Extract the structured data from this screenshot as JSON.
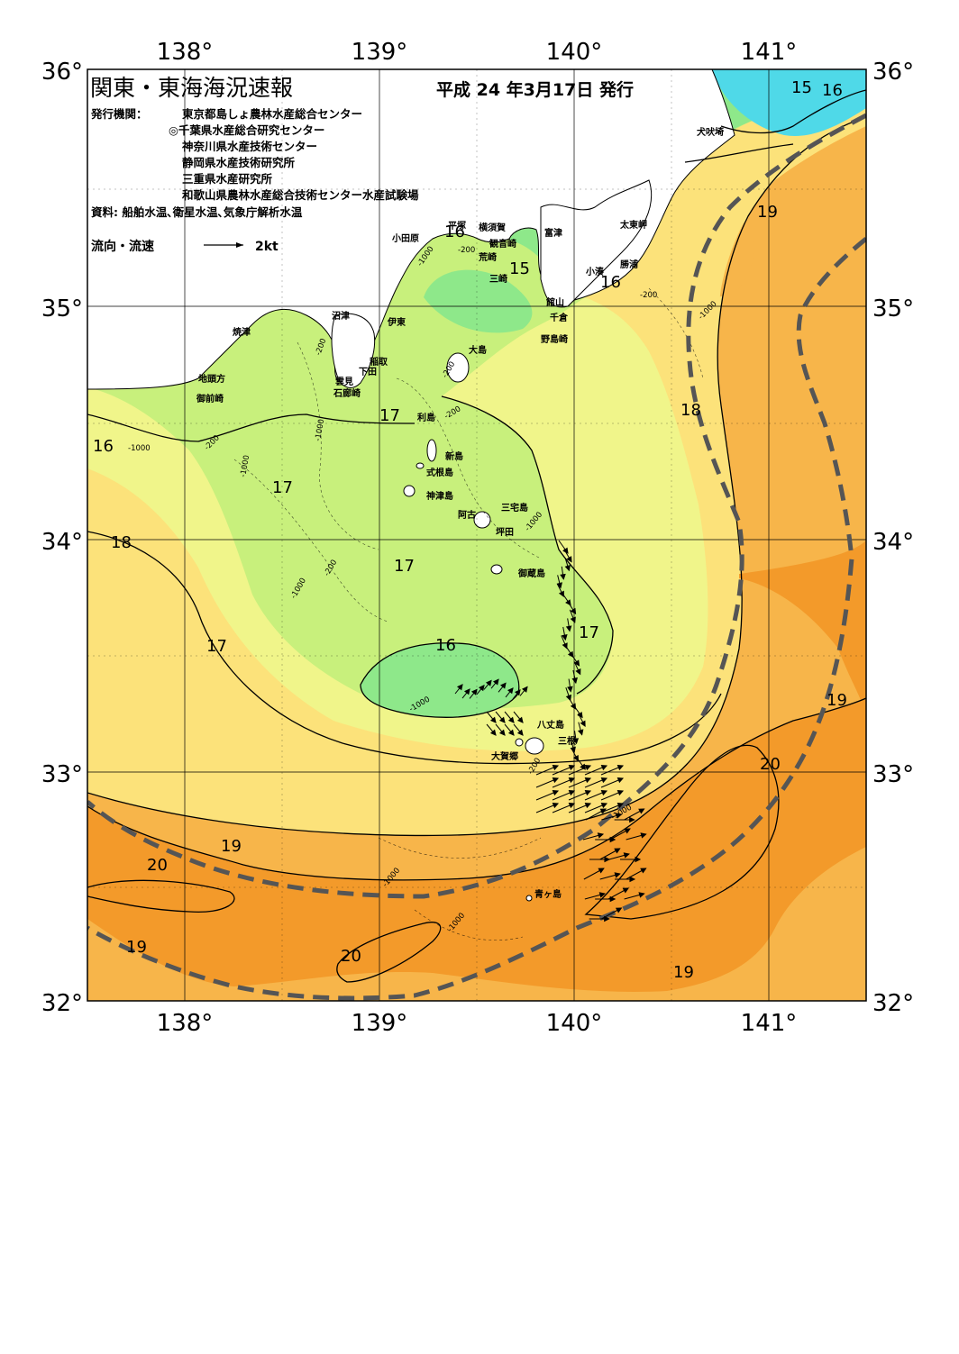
{
  "header": {
    "title": "関東・東海海況速報",
    "issue": "平成 24 年3月17日 発行",
    "issuer_label": "発行機関：",
    "issuers": [
      "東京都島しょ農林水産総合センター",
      "◎千葉県水産総合研究センター",
      "神奈川県水産技術センター",
      "静岡県水産技術研究所",
      "三重県水産研究所",
      "和歌山県農林水産総合技術センター水産試験場"
    ],
    "sources": "資料: 船舶水温､衛星水温､気象庁解析水温"
  },
  "legend": {
    "label": "流向・流速",
    "scale": "2kt"
  },
  "axes": {
    "lon_labels": [
      "138°",
      "139°",
      "140°",
      "141°"
    ],
    "lat_labels": [
      "36°",
      "35°",
      "34°",
      "33°",
      "32°"
    ]
  },
  "place_names": [
    "犬吠埼",
    "太東岬",
    "勝浦",
    "小湊",
    "富津",
    "横須賀",
    "観音崎",
    "荒崎",
    "三崎",
    "館山",
    "千倉",
    "野島崎",
    "平塚",
    "小田原",
    "沼津",
    "伊東",
    "焼津",
    "稲取",
    "下田",
    "雲見",
    "石廊崎",
    "地頭方",
    "御前崎",
    "大島",
    "利島",
    "新島",
    "式根島",
    "神津島",
    "三宅島",
    "阿古",
    "坪田",
    "御蔵島",
    "八丈島",
    "三根",
    "大賀郷",
    "青ヶ島"
  ],
  "isotherm_labels": [
    "15",
    "16",
    "16",
    "16",
    "16",
    "17",
    "17",
    "17",
    "17",
    "17",
    "17",
    "18",
    "18",
    "19",
    "19",
    "19",
    "19",
    "19",
    "20",
    "20",
    "20"
  ],
  "depth_labels": [
    "-200",
    "-1000"
  ],
  "colors": {
    "t15": "#4fd9e8",
    "t16": "#8ee88a",
    "t17a": "#c8f07c",
    "t17b": "#f0f58a",
    "t18": "#fce27a",
    "t18b": "#f9cb5c",
    "t19": "#f7b54a",
    "t20": "#f39a2a",
    "land": "#ffffff",
    "kuroshio_axis": "#555555"
  }
}
